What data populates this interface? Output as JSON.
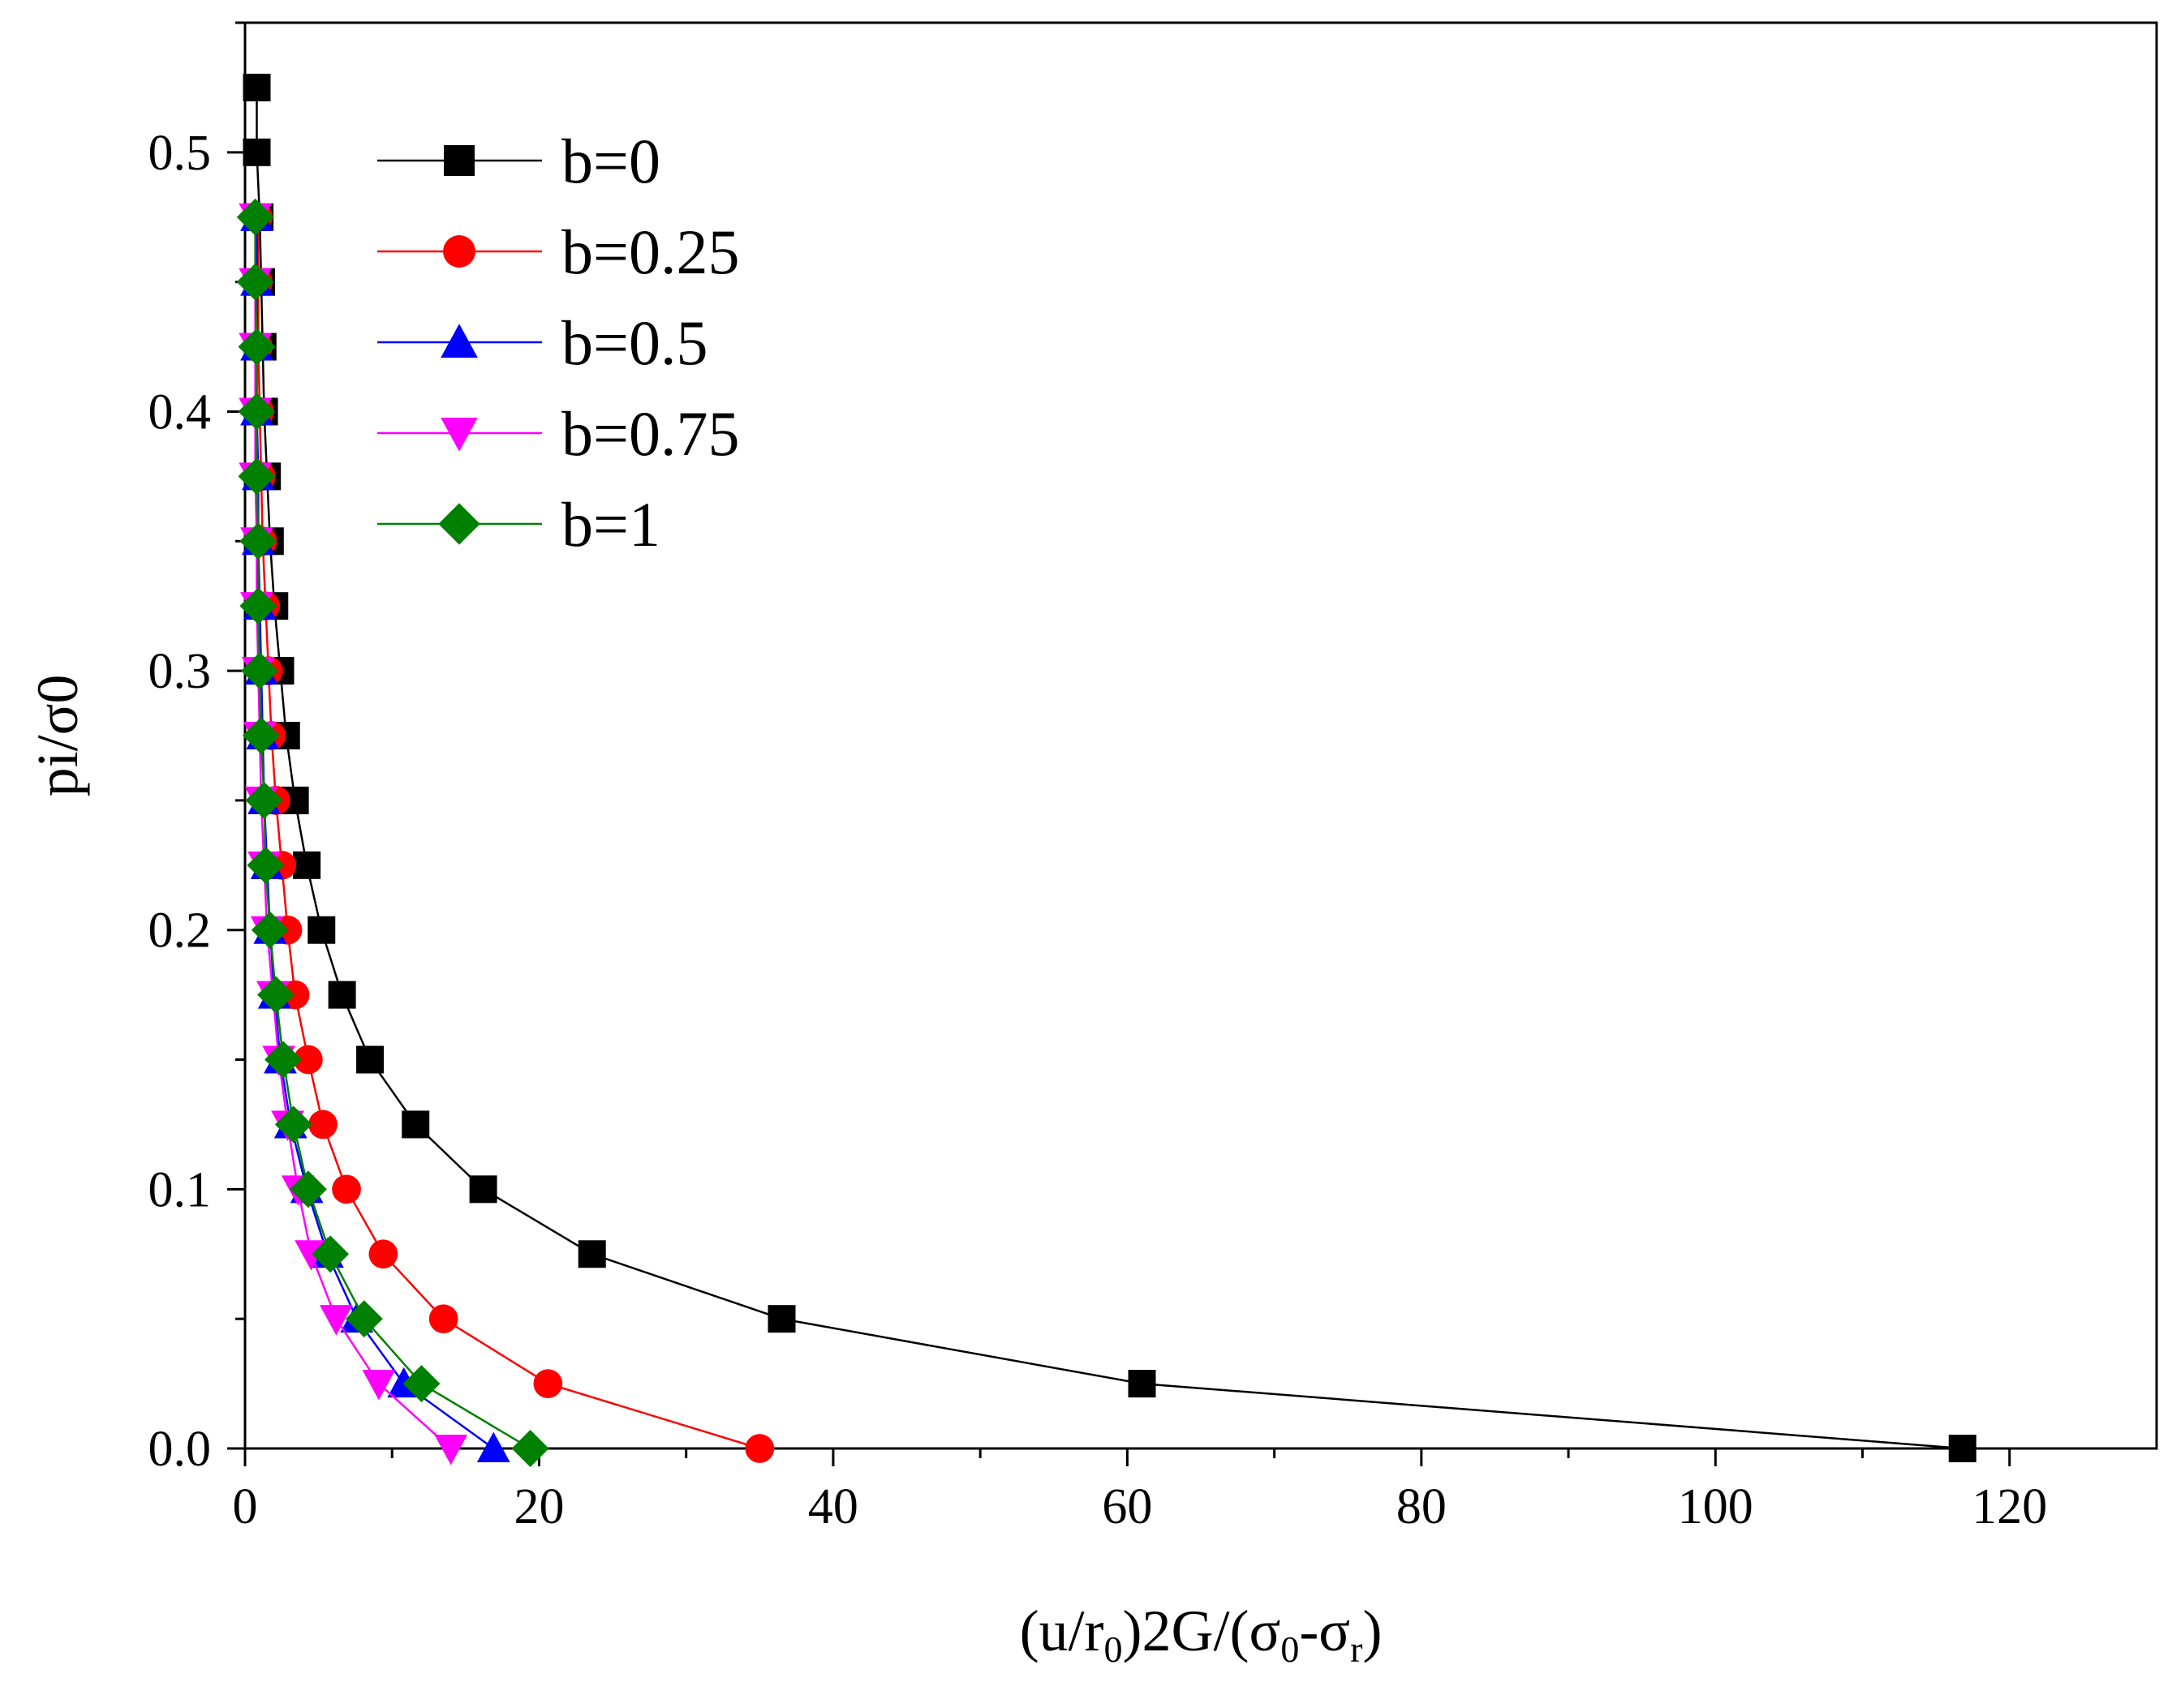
{
  "chart_data": {
    "type": "line",
    "xlabel": "(u/r0)2G/(σ0-σr)",
    "xlabel_parts": {
      "open": "(u/r",
      "sub1": "0",
      "mid": ")2G/(σ",
      "sub2": "0",
      "dash": "-σ",
      "sub3": "r",
      "close": ")"
    },
    "ylabel": "pi/σ0",
    "xlim": [
      0,
      130
    ],
    "ylim": [
      0,
      0.55
    ],
    "x_ticks": [
      0,
      20,
      40,
      60,
      80,
      100,
      120
    ],
    "x_tick_labels": [
      "0",
      "20",
      "40",
      "60",
      "80",
      "100",
      "120"
    ],
    "y_ticks": [
      0.0,
      0.1,
      0.2,
      0.3,
      0.4,
      0.5
    ],
    "y_tick_labels": [
      "0.0",
      "0.1",
      "0.2",
      "0.3",
      "0.4",
      "0.5"
    ],
    "grid": false,
    "legend_position": "top-left",
    "y": [
      0.525,
      0.5,
      0.475,
      0.45,
      0.425,
      0.4,
      0.375,
      0.35,
      0.325,
      0.3,
      0.275,
      0.25,
      0.225,
      0.2,
      0.175,
      0.15,
      0.125,
      0.1,
      0.075,
      0.05,
      0.025,
      0.0
    ],
    "series": [
      {
        "name": "b=0",
        "color": "#000000",
        "marker": "square",
        "x": [
          0.8,
          0.8,
          1.0,
          1.1,
          1.2,
          1.3,
          1.5,
          1.7,
          2.0,
          2.4,
          2.8,
          3.4,
          4.2,
          5.2,
          6.6,
          8.5,
          11.6,
          16.2,
          23.6,
          36.5,
          61.0,
          116.8
        ]
      },
      {
        "name": "b=0.25",
        "color": "#ff0000",
        "marker": "circle",
        "x": [
          null,
          null,
          0.9,
          0.9,
          0.9,
          1.0,
          1.1,
          1.2,
          1.4,
          1.6,
          1.8,
          2.1,
          2.5,
          2.9,
          3.4,
          4.3,
          5.3,
          6.9,
          9.4,
          13.5,
          20.6,
          35.0
        ]
      },
      {
        "name": "b=0.5",
        "color": "#0000ff",
        "marker": "triangle-up",
        "x": [
          null,
          null,
          0.8,
          0.8,
          0.8,
          0.8,
          0.9,
          0.9,
          1.0,
          1.1,
          1.2,
          1.3,
          1.5,
          1.7,
          2.0,
          2.4,
          3.1,
          4.2,
          5.6,
          7.6,
          10.8,
          16.9
        ]
      },
      {
        "name": "b=0.75",
        "color": "#ff00ff",
        "marker": "triangle-down",
        "x": [
          null,
          null,
          0.7,
          0.7,
          0.7,
          0.7,
          0.7,
          0.8,
          0.8,
          0.9,
          1.0,
          1.1,
          1.3,
          1.5,
          1.9,
          2.3,
          2.9,
          3.6,
          4.5,
          6.2,
          9.1,
          14.0
        ]
      },
      {
        "name": "b=1",
        "color": "#008000",
        "marker": "diamond",
        "x": [
          null,
          null,
          0.7,
          0.7,
          0.8,
          0.8,
          0.8,
          0.9,
          0.9,
          1.0,
          1.1,
          1.3,
          1.4,
          1.7,
          2.1,
          2.6,
          3.3,
          4.3,
          5.8,
          8.1,
          12.0,
          19.4
        ]
      }
    ]
  }
}
